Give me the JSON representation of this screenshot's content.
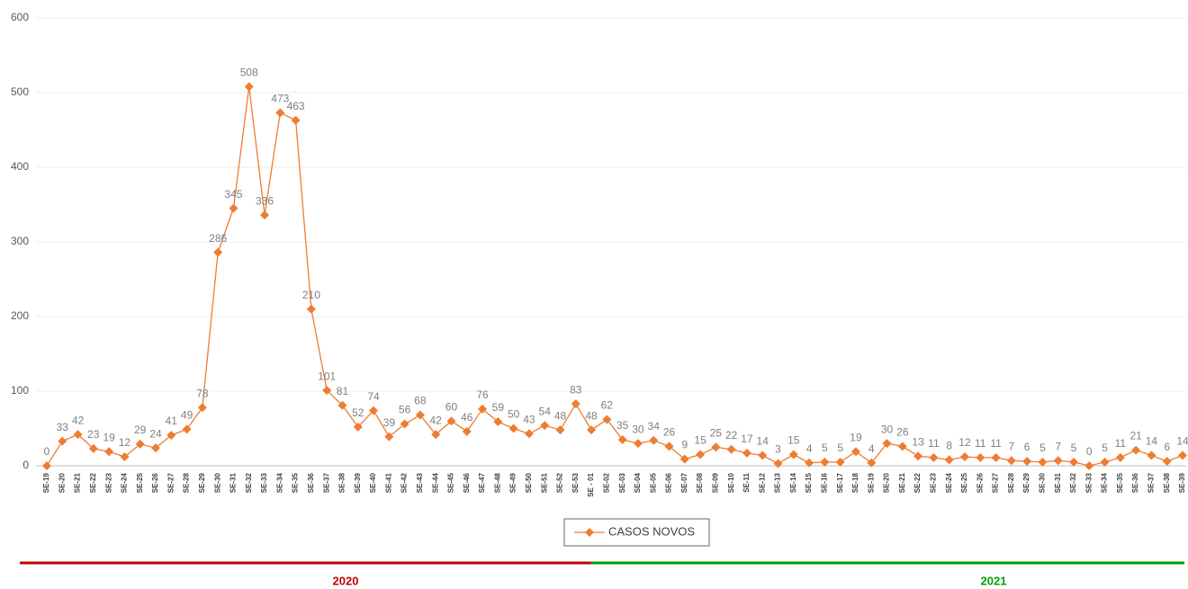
{
  "chart_data": {
    "type": "line",
    "categories": [
      "SE-19",
      "SE-20",
      "SE-21",
      "SE-22",
      "SE-23",
      "SE-24",
      "SE-25",
      "SE-26",
      "SE-27",
      "SE-28",
      "SE-29",
      "SE-30",
      "SE-31",
      "SE-32",
      "SE-33",
      "SE-34",
      "SE-35",
      "SE-36",
      "SE-37",
      "SE-38",
      "SE-39",
      "SE-40",
      "SE-41",
      "SE-42",
      "SE-43",
      "SE-44",
      "SE-45",
      "SE-46",
      "SE-47",
      "SE-48",
      "SE-49",
      "SE-50",
      "SE-51",
      "SE-52",
      "SE-53",
      "SE - 01",
      "SE-02",
      "SE-03",
      "SE-04",
      "SE-05",
      "SE-06",
      "SE-07",
      "SE-08",
      "SE-09",
      "SE-10",
      "SE-11",
      "SE-12",
      "SE-13",
      "SE-14",
      "SE-15",
      "SE-16",
      "SE-17",
      "SE-18",
      "SE-19",
      "SE-20",
      "SE-21",
      "SE-22",
      "SE-23",
      "SE-24",
      "SE-25",
      "SE-26",
      "SE-27",
      "SE-28",
      "SE-29",
      "SE-30",
      "SE-31",
      "SE-32",
      "SE-33",
      "SE-34",
      "SE-35",
      "SE-36",
      "SE-37",
      "SE-38",
      "SE-39"
    ],
    "series": [
      {
        "name": "CASOS NOVOS",
        "color": "#ed7d31",
        "values": [
          0,
          33,
          42,
          23,
          19,
          12,
          29,
          24,
          41,
          49,
          78,
          286,
          345,
          508,
          336,
          473,
          463,
          210,
          101,
          81,
          52,
          74,
          39,
          56,
          68,
          42,
          60,
          46,
          76,
          59,
          50,
          43,
          54,
          48,
          83,
          48,
          62,
          35,
          30,
          34,
          26,
          9,
          15,
          25,
          22,
          17,
          14,
          3,
          15,
          4,
          5,
          5,
          19,
          4,
          30,
          26,
          13,
          11,
          8,
          12,
          11,
          11,
          7,
          6,
          5,
          7,
          5,
          0,
          5,
          11,
          21,
          14,
          6,
          14
        ]
      }
    ],
    "ylim": [
      0,
      600
    ],
    "yticks": [
      0,
      100,
      200,
      300,
      400,
      500,
      600
    ],
    "grid": true,
    "legend": "bottom",
    "periods": [
      {
        "label": "2020",
        "color": "#c00000"
      },
      {
        "label": "2021",
        "color": "#00a000"
      }
    ]
  }
}
